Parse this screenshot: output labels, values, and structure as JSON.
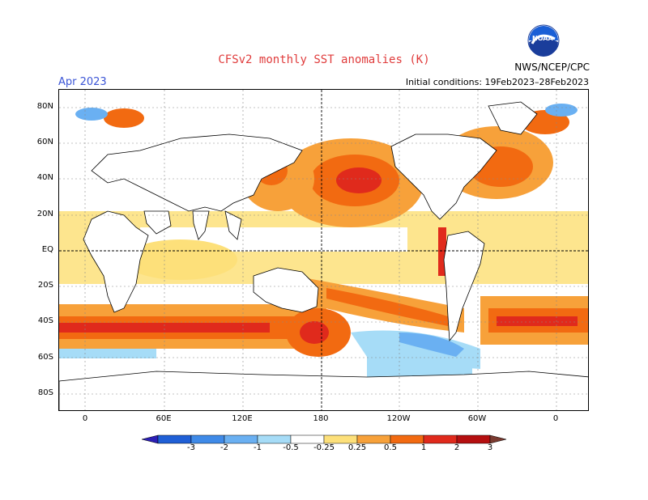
{
  "header": {
    "title": "CFSv2 monthly SST anomalies (K)",
    "agency": "NWS/NCEP/CPC",
    "logo_text": "NOAA",
    "month": "Apr 2023",
    "initial_conditions": "Initial conditions: 19Feb2023–28Feb2023"
  },
  "axes": {
    "lat_labels": [
      "80N",
      "60N",
      "40N",
      "20N",
      "EQ",
      "20S",
      "40S",
      "60S",
      "80S"
    ],
    "lon_labels": [
      "0",
      "60E",
      "120E",
      "180",
      "120W",
      "60W",
      "0"
    ]
  },
  "colorbar": {
    "labels": [
      "-3",
      "-2",
      "-1",
      "-0.5",
      "-0.25",
      "0.25",
      "0.5",
      "1",
      "2",
      "3"
    ],
    "colors": [
      "#2c1fb5",
      "#1f5fd6",
      "#3f8ae8",
      "#6ab0f2",
      "#a6dcf7",
      "#ffffff",
      "#fde07a",
      "#f7a13a",
      "#f26a11",
      "#e02a1c",
      "#b50f10",
      "#7a3a30"
    ]
  }
}
